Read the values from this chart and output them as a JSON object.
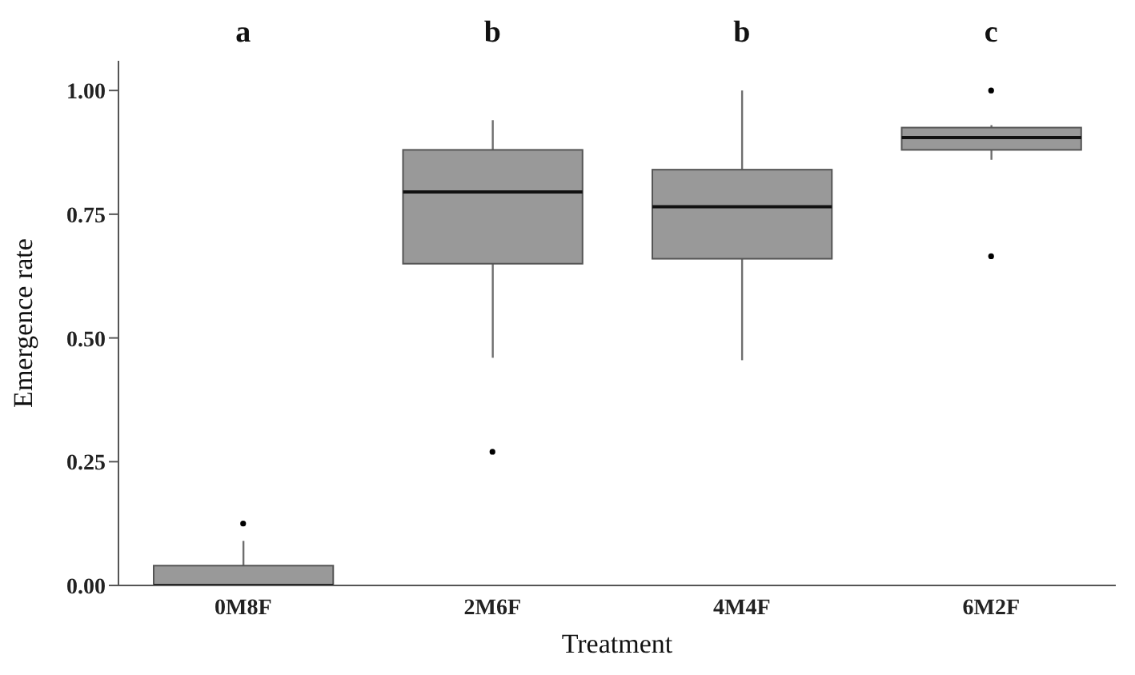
{
  "chart_data": {
    "type": "box",
    "xlabel": "Treatment",
    "ylabel": "Emergence rate",
    "categories": [
      "0M8F",
      "2M6F",
      "4M4F",
      "6M2F"
    ],
    "boxes": [
      {
        "low": 0,
        "q1": 0,
        "median": 0,
        "q3": 0.04,
        "high": 0.09,
        "outliers": [
          0.125
        ]
      },
      {
        "low": 0.46,
        "q1": 0.65,
        "median": 0.795,
        "q3": 0.88,
        "high": 0.94,
        "outliers": [
          0.27
        ]
      },
      {
        "low": 0.455,
        "q1": 0.66,
        "median": 0.765,
        "q3": 0.84,
        "high": 1.0
      },
      {
        "low": 0.86,
        "q1": 0.88,
        "median": 0.905,
        "q3": 0.925,
        "high": 0.93,
        "outliers": [
          1.0,
          0.665
        ]
      }
    ],
    "color": "#999999",
    "ylim": [
      0,
      1.06
    ],
    "yticks": [
      {
        "value": 0,
        "label": "0.00"
      },
      {
        "value": 0.25,
        "label": "0.25"
      },
      {
        "value": 0.5,
        "label": "0.50"
      },
      {
        "value": 0.75,
        "label": "0.75"
      },
      {
        "value": 1,
        "label": "1.00"
      }
    ],
    "annotations": [
      "a",
      "b",
      "b",
      "c"
    ],
    "grid": false,
    "legend": false
  }
}
